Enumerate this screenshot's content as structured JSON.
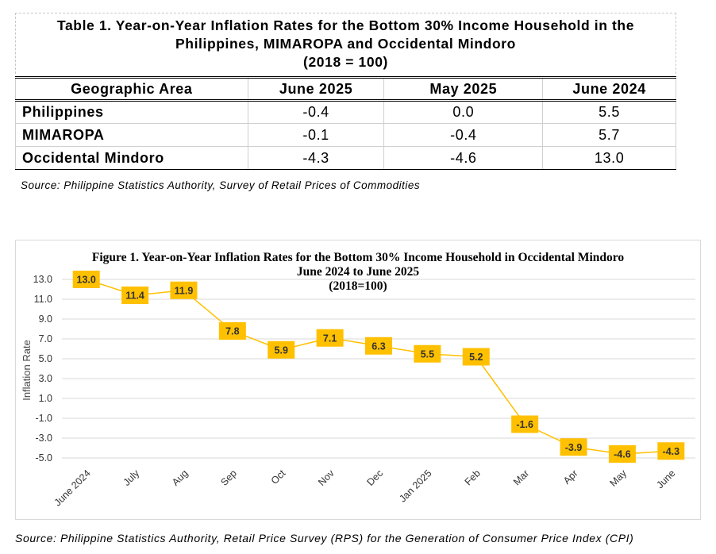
{
  "table": {
    "title_line1": "Table 1. Year-on-Year Inflation Rates for the Bottom 30% Income Household in the",
    "title_line2": "Philippines, MIMAROPA and Occidental Mindoro",
    "title_line3": "(2018 = 100)",
    "headers": [
      "Geographic Area",
      "June 2025",
      "May 2025",
      "June 2024"
    ],
    "rows": [
      {
        "area": "Philippines",
        "values": [
          "-0.4",
          "0.0",
          "5.5"
        ]
      },
      {
        "area": "MIMAROPA",
        "values": [
          "-0.1",
          "-0.4",
          "5.7"
        ]
      },
      {
        "area": "Occidental Mindoro",
        "values": [
          "-4.3",
          "-4.6",
          "13.0"
        ]
      }
    ],
    "source": "Source: Philippine Statistics Authority, Survey of Retail Prices of Commodities"
  },
  "chart_data": {
    "type": "line",
    "title_line1": "Figure 1. Year-on-Year Inflation Rates for the Bottom 30% Income Household in Occidental Mindoro",
    "title_line2": "June 2024 to June 2025",
    "title_line3": "(2018=100)",
    "ylabel": "Inflation Rate",
    "xlabel": "",
    "categories": [
      "June 2024",
      "July",
      "Aug",
      "Sep",
      "Oct",
      "Nov",
      "Dec",
      "Jan  2025",
      "Feb",
      "Mar",
      "Apr",
      "May",
      "June"
    ],
    "values": [
      13.0,
      11.4,
      11.9,
      7.8,
      5.9,
      7.1,
      6.3,
      5.5,
      5.2,
      -1.6,
      -3.9,
      -4.6,
      -4.3
    ],
    "data_labels": [
      "13.0",
      "11.4",
      "11.9",
      "7.8",
      "5.9",
      "7.1",
      "6.3",
      "5.5",
      "5.2",
      "-1.6",
      "-3.9",
      "-4.6",
      "-4.3"
    ],
    "yticks": [
      "13.0",
      "11.0",
      "9.0",
      "7.0",
      "5.0",
      "3.0",
      "1.0",
      "-1.0",
      "-3.0",
      "-5.0"
    ],
    "ylim": [
      -5.0,
      13.0
    ],
    "grid": true,
    "line_color": "#FFC000",
    "label_fill": "#FFC000",
    "grid_color": "#D9D9D9",
    "source": "Source: Philippine Statistics Authority, Retail Price Survey (RPS) for the Generation of Consumer Price Index (CPI)"
  }
}
